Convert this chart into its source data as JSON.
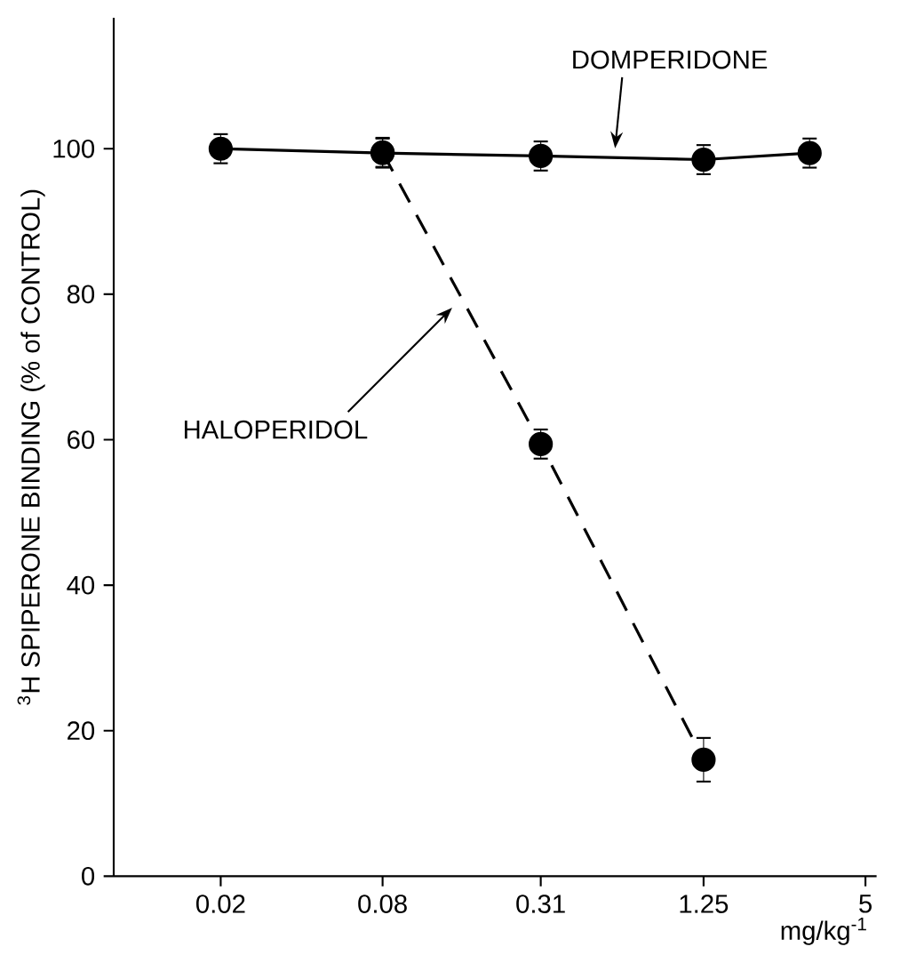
{
  "chart_data": {
    "type": "line",
    "xlabel": "mg/kg$^{-1}$",
    "ylabel": "$^{3}$H SPIPERONE BINDING (% of CONTROL)",
    "log": "x",
    "xlim": [
      0.008,
      5.5
    ],
    "xticks": [
      0.02,
      0.08,
      0.31,
      1.25,
      5
    ],
    "ylim": [
      0,
      118
    ],
    "yticks": [
      0,
      20,
      40,
      60,
      80,
      100
    ],
    "marker": "circle",
    "grid": false,
    "series": [
      {
        "name": "DOMPERIDONE",
        "color": "#000000",
        "line_style": "solid",
        "x": [
          0.02,
          0.08,
          0.31,
          1.25,
          3.1
        ],
        "values": [
          100,
          99.4,
          99,
          98.5,
          99.4
        ],
        "errors": [
          2,
          2,
          2,
          2,
          2
        ]
      },
      {
        "name": "HALOPERIDOL",
        "color": "#000000",
        "line_style": "dashed",
        "x": [
          0.08,
          0.31,
          1.25
        ],
        "values": [
          99.5,
          59.4,
          16
        ],
        "errors": [
          2,
          2,
          3
        ]
      }
    ]
  }
}
